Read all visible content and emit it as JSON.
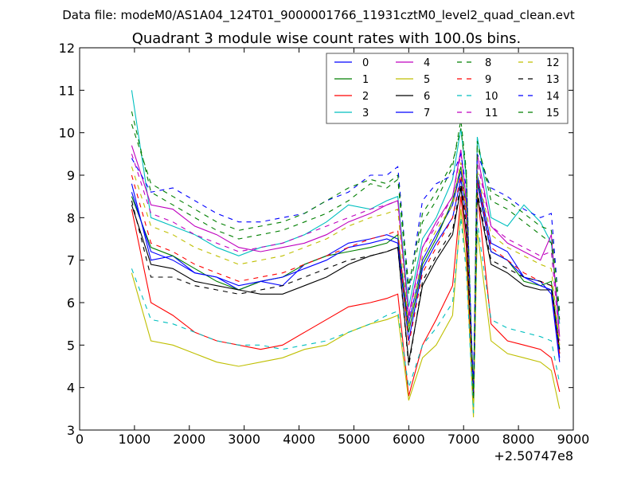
{
  "chart_data": {
    "type": "line",
    "suptitle": "Data file: modeM0/AS1A04_124T01_9000001766_11931cztM0_level2_quad_clean.evt",
    "title": "Quadrant 3 module wise count rates with 100.0s bins.",
    "xlabel": "",
    "ylabel": "",
    "x_offset_label": "+2.50747e8",
    "xlim": [
      0,
      9000
    ],
    "ylim": [
      3,
      12
    ],
    "x_ticks": [
      "0",
      "1000",
      "2000",
      "3000",
      "4000",
      "5000",
      "6000",
      "7000",
      "8000",
      "9000"
    ],
    "y_ticks": [
      "3",
      "4",
      "5",
      "6",
      "7",
      "8",
      "9",
      "10",
      "11",
      "12"
    ],
    "grid": false,
    "legend": {
      "position": "top-right",
      "columns": 4,
      "entries": [
        {
          "label": "0",
          "color": "#0000ff",
          "dash": "solid"
        },
        {
          "label": "1",
          "color": "#007f00",
          "dash": "solid"
        },
        {
          "label": "2",
          "color": "#ff0000",
          "dash": "solid"
        },
        {
          "label": "3",
          "color": "#00bfbf",
          "dash": "solid"
        },
        {
          "label": "4",
          "color": "#bf00bf",
          "dash": "solid"
        },
        {
          "label": "5",
          "color": "#bfbf00",
          "dash": "solid"
        },
        {
          "label": "6",
          "color": "#000000",
          "dash": "solid"
        },
        {
          "label": "7",
          "color": "#0000ff",
          "dash": "solid"
        },
        {
          "label": "8",
          "color": "#007f00",
          "dash": "dashed"
        },
        {
          "label": "9",
          "color": "#ff0000",
          "dash": "dashed"
        },
        {
          "label": "10",
          "color": "#00bfbf",
          "dash": "dashed"
        },
        {
          "label": "11",
          "color": "#bf00bf",
          "dash": "dashed"
        },
        {
          "label": "12",
          "color": "#bfbf00",
          "dash": "dashed"
        },
        {
          "label": "13",
          "color": "#000000",
          "dash": "dashed"
        },
        {
          "label": "14",
          "color": "#0000ff",
          "dash": "dashed"
        },
        {
          "label": "15",
          "color": "#007f00",
          "dash": "dashed"
        }
      ]
    },
    "x": [
      950,
      1300,
      1700,
      2100,
      2500,
      2900,
      3300,
      3700,
      4100,
      4500,
      4900,
      5300,
      5600,
      5800,
      6000,
      6250,
      6500,
      6800,
      6950,
      7050,
      7180,
      7250,
      7500,
      7800,
      8100,
      8400,
      8600,
      8750
    ],
    "series": [
      {
        "name": "0",
        "values": [
          8.8,
          7.0,
          7.1,
          6.7,
          6.6,
          6.3,
          6.5,
          6.4,
          6.9,
          7.1,
          7.4,
          7.5,
          7.6,
          7.5,
          5.5,
          7.0,
          7.6,
          8.3,
          9.1,
          8.3,
          3.8,
          9.0,
          7.4,
          7.2,
          6.6,
          6.5,
          6.2,
          4.6
        ]
      },
      {
        "name": "1",
        "values": [
          8.5,
          7.3,
          7.1,
          6.8,
          6.5,
          6.3,
          6.5,
          6.6,
          6.9,
          7.1,
          7.2,
          7.3,
          7.4,
          7.6,
          5.3,
          6.9,
          7.5,
          8.4,
          9.2,
          8.2,
          3.6,
          8.9,
          7.2,
          7.0,
          6.5,
          6.4,
          6.5,
          4.9
        ]
      },
      {
        "name": "2",
        "values": [
          8.2,
          6.0,
          5.7,
          5.3,
          5.1,
          5.0,
          4.9,
          5.0,
          5.3,
          5.6,
          5.9,
          6.0,
          6.1,
          6.2,
          3.8,
          5.0,
          5.6,
          6.4,
          8.5,
          7.3,
          3.6,
          8.6,
          5.5,
          5.1,
          5.0,
          4.9,
          4.7,
          3.9
        ]
      },
      {
        "name": "3",
        "values": [
          11.0,
          8.0,
          7.8,
          7.6,
          7.3,
          7.1,
          7.3,
          7.4,
          7.6,
          7.9,
          8.3,
          8.2,
          8.4,
          8.5,
          5.9,
          7.5,
          8.0,
          8.9,
          10.1,
          8.9,
          3.5,
          9.9,
          8.0,
          7.8,
          8.3,
          7.9,
          7.4,
          5.5
        ]
      },
      {
        "name": "4",
        "values": [
          9.7,
          8.3,
          8.2,
          7.8,
          7.6,
          7.3,
          7.2,
          7.3,
          7.4,
          7.6,
          7.9,
          8.1,
          8.3,
          8.4,
          5.7,
          7.3,
          7.9,
          8.5,
          9.6,
          8.4,
          3.7,
          9.5,
          7.8,
          7.4,
          7.2,
          7.0,
          7.6,
          5.2
        ]
      },
      {
        "name": "5",
        "values": [
          6.7,
          5.1,
          5.0,
          4.8,
          4.6,
          4.5,
          4.6,
          4.7,
          4.9,
          5.0,
          5.3,
          5.5,
          5.6,
          5.7,
          3.7,
          4.7,
          5.0,
          5.7,
          8.2,
          6.9,
          3.3,
          7.7,
          5.1,
          4.8,
          4.7,
          4.6,
          4.4,
          3.5
        ]
      },
      {
        "name": "6",
        "values": [
          8.3,
          6.9,
          6.8,
          6.5,
          6.4,
          6.3,
          6.2,
          6.2,
          6.4,
          6.6,
          6.9,
          7.1,
          7.2,
          7.3,
          4.6,
          6.4,
          7.0,
          7.6,
          8.7,
          7.6,
          3.9,
          8.5,
          6.9,
          6.7,
          6.4,
          6.3,
          6.3,
          4.8
        ]
      },
      {
        "name": "7",
        "values": [
          8.6,
          7.2,
          7.0,
          6.7,
          6.6,
          6.4,
          6.5,
          6.6,
          6.8,
          7.0,
          7.3,
          7.4,
          7.5,
          7.4,
          5.1,
          6.8,
          7.4,
          8.0,
          8.9,
          8.0,
          4.0,
          8.8,
          7.2,
          7.0,
          6.6,
          6.4,
          6.3,
          4.7
        ]
      },
      {
        "name": "8",
        "values": [
          10.5,
          8.6,
          8.3,
          8.0,
          7.7,
          7.5,
          7.6,
          7.7,
          7.9,
          8.1,
          8.4,
          8.8,
          8.7,
          8.9,
          6.2,
          7.9,
          8.4,
          9.2,
          10.3,
          9.1,
          3.6,
          9.8,
          8.4,
          8.2,
          7.9,
          7.6,
          7.4,
          5.6
        ]
      },
      {
        "name": "9",
        "values": [
          9.0,
          7.4,
          7.2,
          6.9,
          6.7,
          6.5,
          6.6,
          6.7,
          6.9,
          7.1,
          7.3,
          7.5,
          7.6,
          7.7,
          5.0,
          6.7,
          7.3,
          8.0,
          9.0,
          8.0,
          3.7,
          8.9,
          7.3,
          7.0,
          6.7,
          6.5,
          6.4,
          4.8
        ]
      },
      {
        "name": "10",
        "values": [
          6.8,
          5.6,
          5.5,
          5.3,
          5.1,
          5.0,
          5.0,
          4.9,
          5.0,
          5.1,
          5.3,
          5.5,
          5.7,
          5.8,
          4.0,
          5.0,
          5.4,
          6.0,
          8.0,
          6.7,
          3.4,
          7.9,
          5.6,
          5.4,
          5.3,
          5.2,
          5.1,
          4.1
        ]
      },
      {
        "name": "11",
        "values": [
          9.5,
          8.1,
          7.9,
          7.6,
          7.4,
          7.2,
          7.3,
          7.4,
          7.6,
          7.8,
          8.0,
          8.2,
          8.3,
          8.4,
          5.6,
          7.3,
          7.8,
          8.5,
          9.5,
          8.4,
          3.7,
          9.3,
          7.8,
          7.5,
          7.3,
          7.1,
          7.2,
          5.1
        ]
      },
      {
        "name": "12",
        "values": [
          9.2,
          7.8,
          7.6,
          7.3,
          7.1,
          6.9,
          7.0,
          7.1,
          7.3,
          7.5,
          7.8,
          8.0,
          8.1,
          8.2,
          5.4,
          7.1,
          7.7,
          8.3,
          9.3,
          8.2,
          3.6,
          9.1,
          7.6,
          7.3,
          7.1,
          6.9,
          6.8,
          5.0
        ]
      },
      {
        "name": "13",
        "values": [
          8.4,
          6.6,
          6.6,
          6.4,
          6.3,
          6.2,
          6.3,
          6.4,
          6.6,
          6.8,
          7.0,
          7.1,
          7.2,
          7.3,
          4.5,
          6.5,
          7.1,
          7.7,
          8.8,
          7.8,
          3.8,
          8.6,
          7.0,
          6.8,
          6.6,
          6.5,
          6.4,
          4.9
        ]
      },
      {
        "name": "14",
        "values": [
          9.4,
          8.6,
          8.7,
          8.4,
          8.1,
          7.9,
          7.9,
          8.0,
          8.1,
          8.4,
          8.6,
          9.0,
          9.0,
          9.2,
          6.3,
          8.4,
          8.8,
          9.0,
          9.5,
          8.7,
          3.9,
          9.5,
          8.7,
          8.5,
          8.2,
          8.0,
          8.1,
          5.7
        ]
      },
      {
        "name": "15",
        "values": [
          10.2,
          8.8,
          8.5,
          8.2,
          7.9,
          7.7,
          7.8,
          7.9,
          8.1,
          8.4,
          8.7,
          8.9,
          8.8,
          9.0,
          6.4,
          8.1,
          8.6,
          9.3,
          10.1,
          9.0,
          3.7,
          9.7,
          8.6,
          8.4,
          8.1,
          7.8,
          7.7,
          5.8
        ]
      }
    ]
  }
}
